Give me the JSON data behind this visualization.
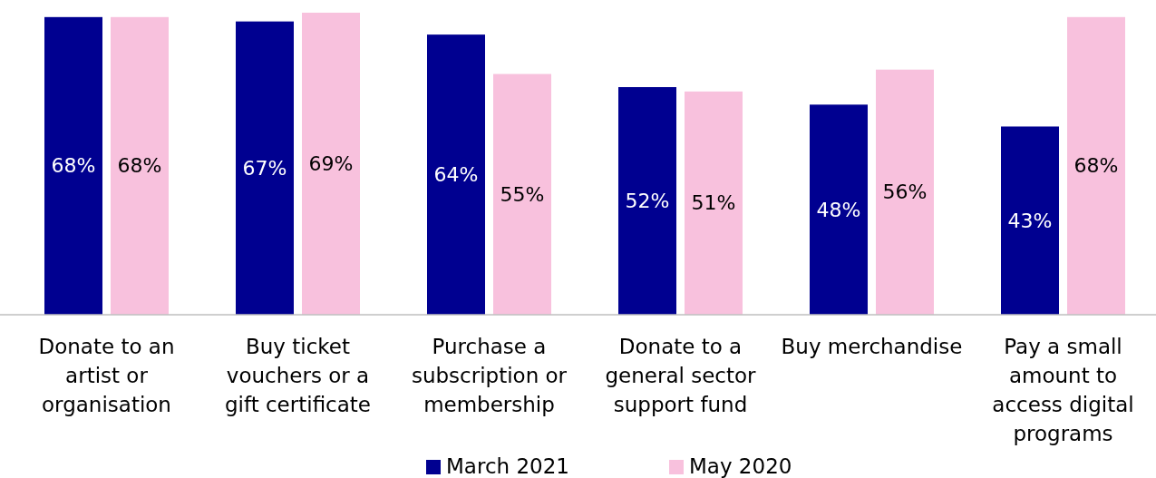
{
  "chart_data": {
    "type": "bar",
    "categories": [
      "Donate to an artist or organisation",
      "Buy ticket vouchers or a gift certificate",
      "Purchase a subscription or membership",
      "Donate to a general sector support fund",
      "Buy merchandise",
      "Pay a small amount to access digital programs"
    ],
    "series": [
      {
        "name": "March 2021",
        "color": "#000090",
        "values": [
          68,
          67,
          64,
          52,
          48,
          43
        ],
        "value_labels": [
          "68%",
          "67%",
          "64%",
          "52%",
          "48%",
          "43%"
        ]
      },
      {
        "name": "May 2020",
        "color": "#f8c1dd",
        "values": [
          68,
          69,
          55,
          51,
          56,
          68
        ],
        "value_labels": [
          "68%",
          "69%",
          "55%",
          "51%",
          "56%",
          "68%"
        ]
      }
    ],
    "ylim": [
      0,
      69
    ],
    "tick_labels": "x",
    "legend": "bottom"
  }
}
